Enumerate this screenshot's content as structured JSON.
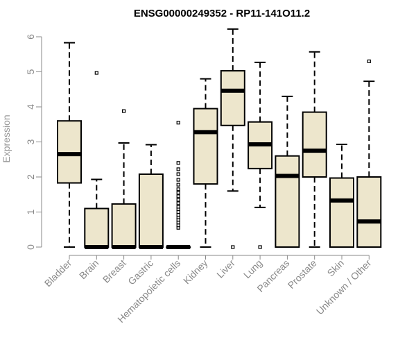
{
  "chart_data": {
    "type": "boxplot",
    "title": "ENSG00000249352 - RP11-141O11.2",
    "xlabel": "",
    "ylabel": "Expression",
    "ylim": [
      0,
      6.2
    ],
    "yticks": [
      0,
      1,
      2,
      3,
      4,
      5,
      6
    ],
    "grid": false,
    "colors": {
      "box_fill": "#ede6cc",
      "stroke": "#000000",
      "axis": "#888888",
      "label": "#888888"
    },
    "categories": [
      "Bladder",
      "Brain",
      "Breast",
      "Gastric",
      "Hematopoietic cells",
      "Kidney",
      "Liver",
      "Lung",
      "Pancreas",
      "Prostate",
      "Skin",
      "Unknown / Other"
    ],
    "boxes": [
      {
        "min": 0,
        "q1": 1.83,
        "median": 2.65,
        "q3": 3.6,
        "max": 5.83,
        "outliers": []
      },
      {
        "min": 0,
        "q1": 0,
        "median": 0,
        "q3": 1.1,
        "max": 1.93,
        "outliers": [
          4.97
        ]
      },
      {
        "min": 0,
        "q1": 0,
        "median": 0,
        "q3": 1.23,
        "max": 2.97,
        "outliers": [
          3.88
        ]
      },
      {
        "min": 0,
        "q1": 0,
        "median": 0,
        "q3": 2.08,
        "max": 2.92,
        "outliers": []
      },
      {
        "min": 0,
        "q1": 0,
        "median": 0,
        "q3": 0,
        "max": 0,
        "outliers": [
          0.55,
          0.62,
          0.7,
          0.78,
          0.85,
          0.92,
          1.0,
          1.08,
          1.15,
          1.25,
          1.35,
          1.45,
          1.55,
          1.65,
          1.78,
          1.92,
          2.08,
          2.22,
          2.4,
          3.55
        ]
      },
      {
        "min": 0,
        "q1": 1.8,
        "median": 3.28,
        "q3": 3.95,
        "max": 4.8,
        "outliers": []
      },
      {
        "min": 1.6,
        "q1": 3.47,
        "median": 4.46,
        "q3": 5.03,
        "max": 6.22,
        "outliers": [
          0
        ]
      },
      {
        "min": 1.13,
        "q1": 2.24,
        "median": 2.93,
        "q3": 3.57,
        "max": 5.27,
        "outliers": [
          0
        ]
      },
      {
        "min": 0,
        "q1": 0,
        "median": 2.03,
        "q3": 2.6,
        "max": 4.3,
        "outliers": []
      },
      {
        "min": 0,
        "q1": 2.0,
        "median": 2.75,
        "q3": 3.85,
        "max": 5.57,
        "outliers": []
      },
      {
        "min": 0,
        "q1": 0,
        "median": 1.33,
        "q3": 1.97,
        "max": 2.93,
        "outliers": []
      },
      {
        "min": 0,
        "q1": 0,
        "median": 0.73,
        "q3": 2.0,
        "max": 4.73,
        "outliers": [
          5.3
        ]
      }
    ]
  }
}
